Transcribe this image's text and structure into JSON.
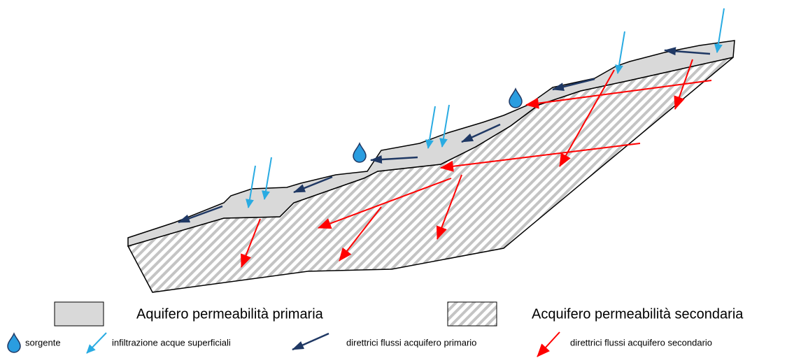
{
  "legend": {
    "primary_aquifer": "Aquifero permeabilità primaria",
    "secondary_aquifer": "Acquifero permeabilità secondaria",
    "spring": "sorgente",
    "infiltration": "infiltrazione acque superficiali",
    "primary_flow": "direttrici flussi acquifero primario",
    "secondary_flow": "direttrici flussi acquifero secondario"
  }
}
